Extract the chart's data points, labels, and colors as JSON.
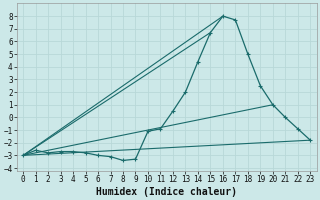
{
  "title": "",
  "xlabel": "Humidex (Indice chaleur)",
  "background_color": "#cce8e8",
  "grid_color": "#b8d8d8",
  "line_color": "#1a6b6b",
  "xlim": [
    -0.5,
    23.5
  ],
  "ylim": [
    -4.2,
    9.0
  ],
  "xticks": [
    0,
    1,
    2,
    3,
    4,
    5,
    6,
    7,
    8,
    9,
    10,
    11,
    12,
    13,
    14,
    15,
    16,
    17,
    18,
    19,
    20,
    21,
    22,
    23
  ],
  "yticks": [
    -4,
    -3,
    -2,
    -1,
    0,
    1,
    2,
    3,
    4,
    5,
    6,
    7,
    8
  ],
  "main_x": [
    0,
    1,
    2,
    3,
    4,
    5,
    6,
    7,
    8,
    9,
    10,
    11,
    12,
    13,
    14,
    15,
    16,
    17,
    18,
    19,
    20,
    21,
    22,
    23
  ],
  "main_y": [
    -3.0,
    -2.6,
    -2.8,
    -2.7,
    -2.7,
    -2.8,
    -3.0,
    -3.1,
    -3.4,
    -3.3,
    -1.1,
    -0.9,
    0.5,
    2.0,
    4.4,
    6.7,
    8.0,
    7.7,
    5.0,
    2.5,
    1.0,
    0.0,
    -0.9,
    -1.8
  ],
  "fan_lines": [
    {
      "x": [
        0,
        15
      ],
      "y": [
        -3.0,
        6.7
      ]
    },
    {
      "x": [
        0,
        16
      ],
      "y": [
        -3.0,
        8.0
      ]
    },
    {
      "x": [
        0,
        20
      ],
      "y": [
        -3.0,
        1.0
      ]
    },
    {
      "x": [
        0,
        23
      ],
      "y": [
        -3.0,
        -1.8
      ]
    }
  ],
  "xlabel_fontsize": 7,
  "tick_fontsize": 5.5
}
